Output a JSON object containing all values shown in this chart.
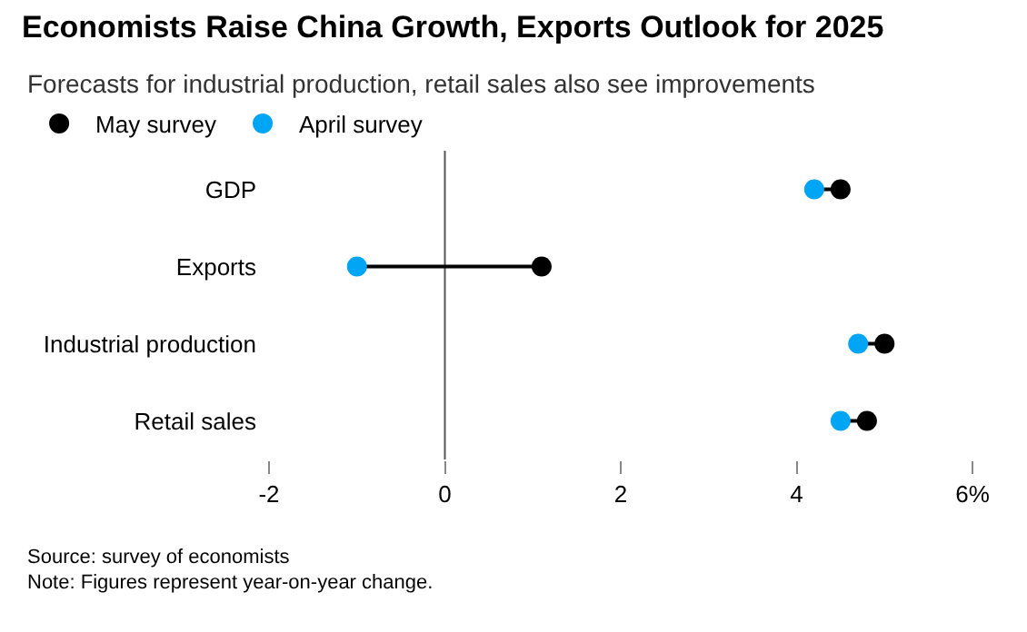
{
  "chart_data": {
    "type": "scatter",
    "title": "Economists Raise China Growth, Exports Outlook for 2025",
    "subtitle": "Forecasts for industrial production, retail sales also see improvements",
    "categories": [
      "GDP",
      "Exports",
      "Industrial production",
      "Retail sales"
    ],
    "orientation": "horizontal",
    "series": [
      {
        "name": "May survey",
        "color": "#000000",
        "values": [
          4.5,
          1.1,
          5.0,
          4.8
        ]
      },
      {
        "name": "April survey",
        "color": "#00a6f5",
        "values": [
          4.2,
          -1.0,
          4.7,
          4.5
        ]
      }
    ],
    "xlim": [
      -2,
      6
    ],
    "xticks": [
      -2,
      0,
      2,
      4,
      {
        "value": 6,
        "label": "6%"
      }
    ],
    "ref_lines": [
      {
        "axis": "x",
        "value": 0,
        "label": null,
        "color": "#555555"
      }
    ],
    "legend": "top left",
    "marker": "circle",
    "annotations": [
      "Source: survey of economists",
      "Note: Figures represent year-on-year change."
    ]
  }
}
